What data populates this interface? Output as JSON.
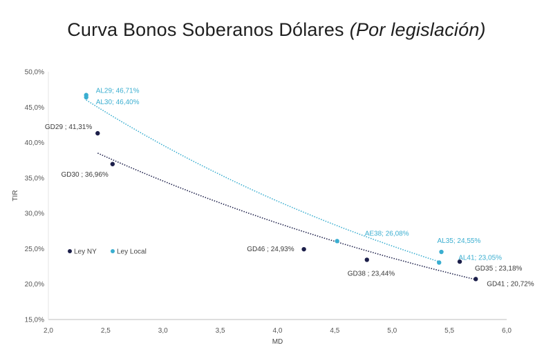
{
  "title": "Curva Bonos Soberanos Dólares",
  "subtitle": "(Por legislación)",
  "chart_data": {
    "type": "scatter",
    "xlabel": "MD",
    "ylabel": "TIR",
    "xlim": [
      2.0,
      6.0
    ],
    "ylim": [
      15.0,
      50.0
    ],
    "x_ticks": [
      "2,0",
      "2,5",
      "3,0",
      "3,5",
      "4,0",
      "4,5",
      "5,0",
      "5,5",
      "6,0"
    ],
    "y_ticks": [
      "15,0%",
      "20,0%",
      "25,0%",
      "30,0%",
      "35,0%",
      "40,0%",
      "45,0%",
      "50,0%"
    ],
    "legend_position": "left-middle",
    "series": [
      {
        "name": "Ley NY",
        "color": "#1c1f4a",
        "trendline": "dotted-exponential",
        "points": [
          {
            "label": "GD29 ; 41,31%",
            "x": 2.43,
            "y": 41.31
          },
          {
            "label": "GD30 ; 36,96%",
            "x": 2.56,
            "y": 36.96
          },
          {
            "label": "GD46 ; 24,93%",
            "x": 4.23,
            "y": 24.93
          },
          {
            "label": "GD38 ; 23,44%",
            "x": 4.78,
            "y": 23.44
          },
          {
            "label": "GD35 ; 23,18%",
            "x": 5.59,
            "y": 23.18
          },
          {
            "label": "GD41 ; 20,72%",
            "x": 5.73,
            "y": 20.72
          }
        ]
      },
      {
        "name": "Ley Local",
        "color": "#3aaed0",
        "trendline": "dotted-exponential",
        "points": [
          {
            "label": "AL29; 46,71%",
            "x": 2.33,
            "y": 46.71
          },
          {
            "label": "AL30; 46,40%",
            "x": 2.33,
            "y": 46.4
          },
          {
            "label": "AE38; 26,08%",
            "x": 4.52,
            "y": 26.08
          },
          {
            "label": "AL35; 24,55%",
            "x": 5.43,
            "y": 24.55
          },
          {
            "label": "AL41; 23,05%",
            "x": 5.41,
            "y": 23.05
          }
        ]
      }
    ]
  }
}
